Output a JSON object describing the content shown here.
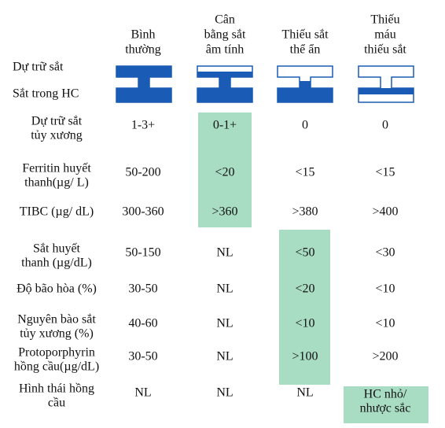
{
  "header": {
    "columns": [
      [
        "Bình",
        "thường"
      ],
      [
        "Cân",
        "bằng sắt",
        "âm tính"
      ],
      [
        "Thiếu sắt",
        "thể ẩn"
      ],
      [
        "Thiếu",
        "máu",
        "thiếu sắt"
      ]
    ],
    "diagram_labels": [
      "Dự trữ sắt",
      "Sắt trong HC"
    ]
  },
  "rows": [
    {
      "label": [
        "Dự trữ sắt",
        "tủy xương"
      ],
      "values": [
        "1-3+",
        "0-1+",
        "0",
        "0"
      ]
    },
    {
      "label": [
        "Ferritin huyết",
        "thanh(µg/ L)"
      ],
      "values": [
        "50-200",
        "<20",
        "<15",
        "<15"
      ]
    },
    {
      "label": [
        "TIBC (µg/ dL)"
      ],
      "values": [
        "300-360",
        ">360",
        ">380",
        ">400"
      ]
    },
    {
      "label": [
        "Sắt huyết",
        "thanh (µg/dL)"
      ],
      "values": [
        "50-150",
        "NL",
        "<50",
        "<30"
      ]
    },
    {
      "label": [
        "Độ bão hòa (%)"
      ],
      "values": [
        "30-50",
        "NL",
        "<20",
        "<10"
      ]
    },
    {
      "label": [
        "Nguyên bào sắt",
        "tủy xương (%)"
      ],
      "values": [
        "40-60",
        "NL",
        "<10",
        "<10"
      ]
    },
    {
      "label": [
        "Protoporphyrin",
        "hồng cầu(µg/dL)"
      ],
      "values": [
        "30-50",
        "NL",
        ">100",
        ">200"
      ]
    },
    {
      "label": [
        "Hình thái hồng",
        "cầu"
      ],
      "values": [
        "NL",
        "NL",
        "NL",
        [
          "HC nhỏ/",
          "nhược sắc"
        ]
      ]
    }
  ]
}
